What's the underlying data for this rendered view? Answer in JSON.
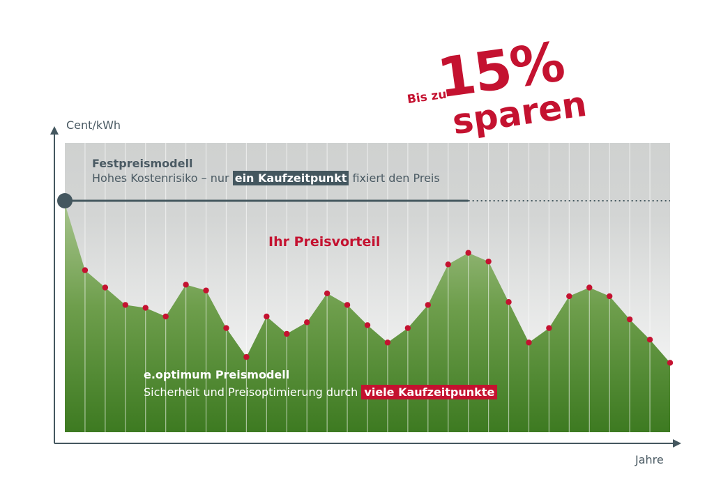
{
  "chart_data": {
    "type": "area",
    "ylabel": "Cent/kWh",
    "xlabel": "Jahre",
    "grid": true,
    "ylim": [
      0,
      10
    ],
    "fixed_price": {
      "value": 8.0,
      "title": "Festpreismodell",
      "desc_before": "Hohes Kostenrisiko – nur ",
      "desc_highlight": "ein Kaufzeitpunkt",
      "desc_after": " fixiert den Preis"
    },
    "optimum": {
      "title": "e.optimum Preismodell",
      "desc_before": "Sicherheit und Preisoptimierung durch ",
      "desc_highlight": "viele Kaufzeitpunkte"
    },
    "advantage_label": "Ihr Preisvorteil",
    "series": [
      {
        "values": [
          7.9,
          5.6,
          5.0,
          4.4,
          4.3,
          4.0,
          5.1,
          4.9,
          3.6,
          2.6,
          4.0,
          3.4,
          3.8,
          4.8,
          4.4,
          3.7,
          3.1,
          3.6,
          4.4,
          5.8,
          6.2,
          5.9,
          4.5,
          3.1,
          3.6,
          4.7,
          5.0,
          4.7,
          3.9,
          3.2,
          2.4
        ],
        "colors": {
          "fill_top": "#9cbd7e",
          "fill_bottom": "#3f7a22",
          "marker": "#c41230"
        }
      }
    ],
    "colors": {
      "axis": "#44575f",
      "fixed_line": "#44575f",
      "zone_top": "#cfd1d0",
      "zone_bottom": "#ffffff"
    }
  },
  "promo": {
    "prefix": "Bis zu",
    "percent": "15%",
    "word": "sparen"
  }
}
